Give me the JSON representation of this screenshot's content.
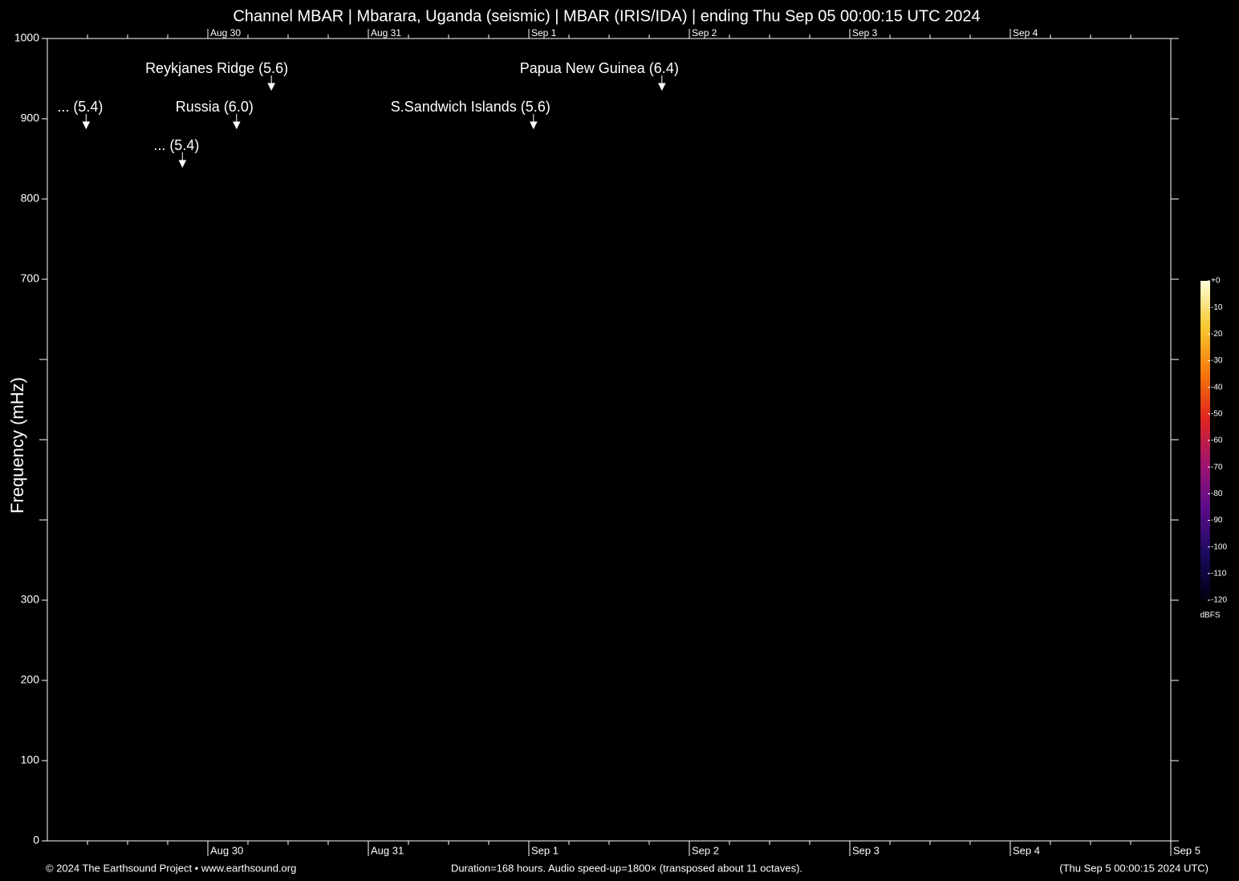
{
  "chart_data": {
    "type": "spectrogram",
    "title": "Channel MBAR | Mbarara, Uganda (seismic) | MBAR (IRIS/IDA) | ending Thu Sep 05 00:00:15 UTC 2024",
    "y_label": "Frequency (mHz)",
    "xlim": [
      0,
      168
    ],
    "xticks": [
      {
        "value": 24,
        "label": "Aug 30"
      },
      {
        "value": 48,
        "label": "Aug 31"
      },
      {
        "value": 72,
        "label": "Sep  1"
      },
      {
        "value": 96,
        "label": "Sep  2"
      },
      {
        "value": 120,
        "label": "Sep  3"
      },
      {
        "value": 144,
        "label": "Sep  4"
      },
      {
        "value": 168,
        "label": "Sep  5"
      }
    ],
    "xminorticks": [
      6,
      12,
      18,
      30,
      36,
      42,
      54,
      60,
      66,
      78,
      84,
      90,
      102,
      108,
      114,
      126,
      132,
      138,
      150,
      156,
      162
    ],
    "ylim": [
      0,
      1000
    ],
    "yticks": [
      0,
      100,
      200,
      300,
      700,
      800,
      900,
      1000
    ],
    "yminorticks": [
      400,
      500,
      600
    ],
    "events": [
      {
        "label": "... (5.4)",
        "time": 5.8,
        "freq": 888
      },
      {
        "label": "... (5.4)",
        "time": 20.2,
        "freq": 840
      },
      {
        "label": "Russia (6.0)",
        "time": 28.3,
        "freq": 888
      },
      {
        "label": "Reykjanes Ridge (5.6)",
        "time": 33.5,
        "freq": 936
      },
      {
        "label": "S.Sandwich Islands (5.6)",
        "time": 72.7,
        "freq": 888
      },
      {
        "label": "Papua New Guinea (6.4)",
        "time": 91.9,
        "freq": 936
      }
    ],
    "colorbar": {
      "label": "dBFS",
      "lim": [
        -120,
        0
      ],
      "colors": [
        "#000010",
        "#1a0a5e",
        "#5a0c8a",
        "#a0146e",
        "#e0261c",
        "#f57a0c",
        "#f8c930",
        "#fcffd8"
      ],
      "ticks": [
        {
          "value": 0,
          "label": "+0"
        },
        -10,
        -20,
        -30,
        -40,
        -50,
        -60,
        -70,
        -80,
        -90,
        -100,
        -110,
        -120
      ]
    },
    "footer_left": "© 2024 The Earthsound Project • www.earthsound.org",
    "footer_center": "Duration=168 hours. Audio speed-up=1800× (transposed about 11 octaves).",
    "footer_right": "(Thu Sep  5 00:00:15 2024 UTC)"
  }
}
